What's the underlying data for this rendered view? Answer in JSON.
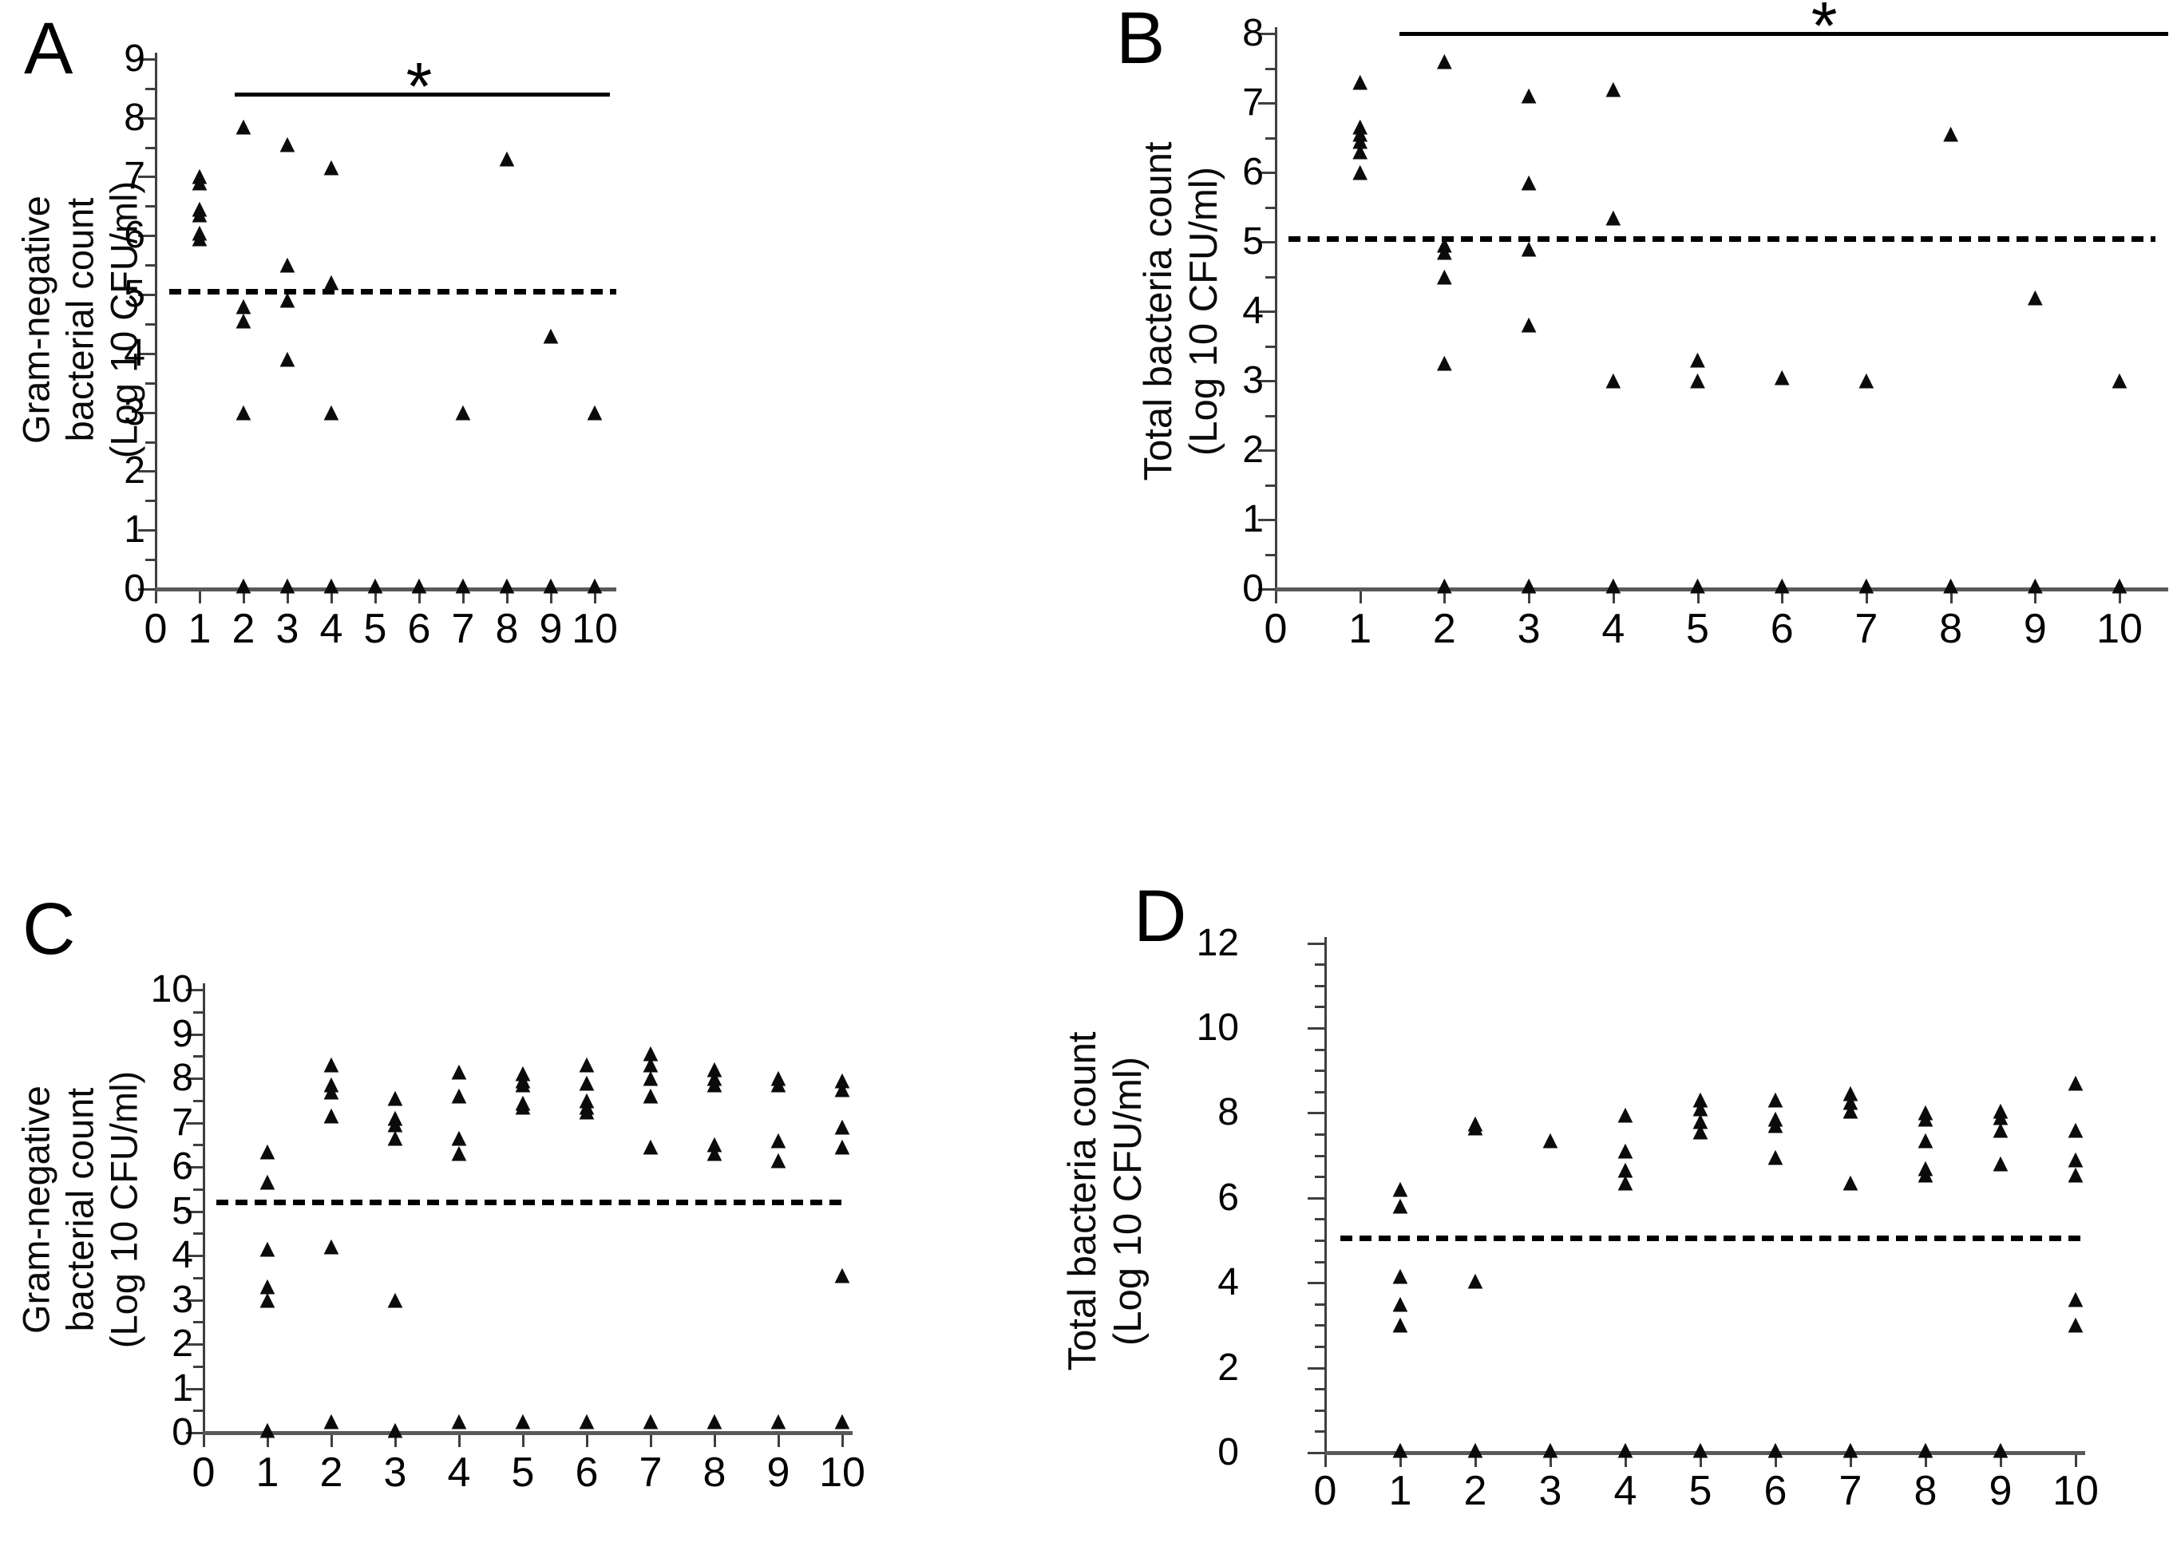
{
  "figure": {
    "background_color": "#ffffff",
    "marker_color": "#0b0b0b",
    "marker_glyph": "triangle-up",
    "axis_color": "#3f3f3f"
  },
  "chart_data": [
    {
      "panel": "A",
      "type": "scatter",
      "title_letter": "A",
      "y_axis_title_lines": [
        "Gram-negative",
        "bacterial count",
        "(Log 10 CFU/ml)"
      ],
      "xlim": [
        0,
        10
      ],
      "ylim": [
        0,
        9
      ],
      "minor_tick_step": 0.5,
      "x_tick_labels": [
        "0",
        "1",
        "2",
        "3",
        "4",
        "5",
        "6",
        "7",
        "8",
        "9",
        "10"
      ],
      "y_tick_labels": [
        "0",
        "1",
        "2",
        "3",
        "4",
        "5",
        "6",
        "7",
        "8",
        "9"
      ],
      "y_label_step": 1,
      "threshold_line_y": 5.05,
      "significance_line": {
        "y": 8.4,
        "x_from": 1.8,
        "x_to": 10.35,
        "asterisk": "*",
        "asterisk_x": 6.0
      },
      "series": [
        {
          "x": 1,
          "values": [
            7.0,
            6.9,
            6.45,
            6.35,
            6.05,
            5.95
          ]
        },
        {
          "x": 2,
          "values": [
            7.85,
            4.8,
            4.55,
            3.0,
            0.05
          ]
        },
        {
          "x": 3,
          "values": [
            7.55,
            5.5,
            4.9,
            3.9,
            0.05
          ]
        },
        {
          "x": 4,
          "values": [
            7.15,
            5.2,
            3.0,
            0.05
          ]
        },
        {
          "x": 5,
          "values": [
            0.05
          ]
        },
        {
          "x": 6,
          "values": [
            0.05
          ]
        },
        {
          "x": 7,
          "values": [
            3.0,
            0.05
          ]
        },
        {
          "x": 8,
          "values": [
            7.3,
            0.05
          ]
        },
        {
          "x": 9,
          "values": [
            4.3,
            0.05
          ]
        },
        {
          "x": 10,
          "values": [
            3.0,
            0.05
          ]
        }
      ]
    },
    {
      "panel": "B",
      "type": "scatter",
      "title_letter": "B",
      "y_axis_title_lines": [
        "Total bacteria count",
        "(Log 10 CFU/ml)"
      ],
      "xlim": [
        0,
        10
      ],
      "ylim": [
        0,
        8
      ],
      "minor_tick_step": 0.5,
      "x_tick_labels": [
        "0",
        "1",
        "2",
        "3",
        "4",
        "5",
        "6",
        "7",
        "8",
        "9",
        "10"
      ],
      "y_tick_labels": [
        "0",
        "1",
        "2",
        "3",
        "4",
        "5",
        "6",
        "7",
        "8"
      ],
      "y_label_step": 1,
      "threshold_line_y": 5.05,
      "significance_line": {
        "y": 8.0,
        "x_from": 1.47,
        "x_to": 10.58,
        "asterisk": "*",
        "asterisk_x": 6.5
      },
      "series": [
        {
          "x": 1,
          "values": [
            7.3,
            6.65,
            6.55,
            6.45,
            6.3,
            6.0
          ]
        },
        {
          "x": 2,
          "values": [
            7.6,
            4.95,
            4.85,
            4.5,
            3.25,
            0.05
          ]
        },
        {
          "x": 3,
          "values": [
            7.1,
            5.85,
            4.9,
            3.8,
            0.05
          ]
        },
        {
          "x": 4,
          "values": [
            7.2,
            5.35,
            3.0,
            0.05
          ]
        },
        {
          "x": 5,
          "values": [
            3.3,
            3.0,
            0.05
          ]
        },
        {
          "x": 6,
          "values": [
            3.05,
            0.05
          ]
        },
        {
          "x": 7,
          "values": [
            3.0,
            0.05
          ]
        },
        {
          "x": 8,
          "values": [
            6.55,
            0.05
          ]
        },
        {
          "x": 9,
          "values": [
            4.2,
            0.05
          ]
        },
        {
          "x": 10,
          "values": [
            3.0,
            0.05
          ]
        }
      ]
    },
    {
      "panel": "C",
      "type": "scatter",
      "title_letter": "C",
      "y_axis_title_lines": [
        "Gram-negative",
        "bacterial count",
        "(Log 10 CFU/ml)"
      ],
      "xlim": [
        0,
        10
      ],
      "ylim": [
        0,
        10
      ],
      "minor_tick_step": 0.5,
      "x_tick_labels": [
        "0",
        "1",
        "2",
        "3",
        "4",
        "5",
        "6",
        "7",
        "8",
        "9",
        "10"
      ],
      "y_tick_labels": [
        "0",
        "1",
        "2",
        "3",
        "4",
        "5",
        "6",
        "7",
        "8",
        "9",
        "10"
      ],
      "y_label_step": 1,
      "threshold_line_y": 5.2,
      "significance_line": null,
      "series": [
        {
          "x": 1,
          "values": [
            6.35,
            5.65,
            4.15,
            3.3,
            3.0,
            0.05
          ]
        },
        {
          "x": 2,
          "values": [
            8.3,
            7.85,
            7.7,
            7.15,
            4.2,
            0.25
          ]
        },
        {
          "x": 3,
          "values": [
            7.55,
            7.1,
            6.95,
            6.65,
            3.0,
            0.05
          ]
        },
        {
          "x": 4,
          "values": [
            8.15,
            7.6,
            6.65,
            6.3,
            0.25
          ]
        },
        {
          "x": 5,
          "values": [
            8.1,
            7.95,
            7.85,
            7.45,
            7.35,
            0.25
          ]
        },
        {
          "x": 6,
          "values": [
            8.3,
            7.9,
            7.5,
            7.35,
            7.25,
            0.25
          ]
        },
        {
          "x": 7,
          "values": [
            8.55,
            8.3,
            8.0,
            7.6,
            6.45,
            0.25
          ]
        },
        {
          "x": 8,
          "values": [
            8.2,
            8.0,
            7.85,
            6.5,
            6.3,
            0.25
          ]
        },
        {
          "x": 9,
          "values": [
            8.0,
            7.85,
            6.6,
            6.15,
            0.25
          ]
        },
        {
          "x": 10,
          "values": [
            7.95,
            7.75,
            6.9,
            6.45,
            3.55,
            0.25
          ]
        }
      ]
    },
    {
      "panel": "D",
      "type": "scatter",
      "title_letter": "D",
      "y_axis_title_lines": [
        "Total bacteria count",
        "(Log 10 CFU/ml)"
      ],
      "xlim": [
        0,
        10
      ],
      "ylim": [
        0,
        12
      ],
      "minor_tick_step": 0.5,
      "x_tick_labels": [
        "0",
        "1",
        "2",
        "3",
        "4",
        "5",
        "6",
        "7",
        "8",
        "9",
        "10"
      ],
      "y_tick_labels": [
        "0",
        "2",
        "4",
        "6",
        "8",
        "10",
        "12"
      ],
      "y_label_step": 2,
      "threshold_line_y": 5.05,
      "significance_line": null,
      "series": [
        {
          "x": 1,
          "values": [
            6.2,
            5.8,
            4.15,
            3.5,
            3.0,
            0.05
          ]
        },
        {
          "x": 2,
          "values": [
            7.75,
            7.65,
            4.05,
            0.05
          ]
        },
        {
          "x": 3,
          "values": [
            7.35,
            0.05
          ]
        },
        {
          "x": 4,
          "values": [
            7.95,
            7.1,
            6.65,
            6.35,
            0.05
          ]
        },
        {
          "x": 5,
          "values": [
            8.3,
            8.1,
            7.8,
            7.55,
            0.05
          ]
        },
        {
          "x": 6,
          "values": [
            8.3,
            7.85,
            7.7,
            6.95,
            0.05
          ]
        },
        {
          "x": 7,
          "values": [
            8.45,
            8.25,
            8.05,
            6.35,
            0.05
          ]
        },
        {
          "x": 8,
          "values": [
            8.0,
            7.85,
            7.35,
            6.7,
            6.55,
            0.05
          ]
        },
        {
          "x": 9,
          "values": [
            8.05,
            7.9,
            7.6,
            6.8,
            0.05
          ]
        },
        {
          "x": 10,
          "values": [
            8.7,
            7.6,
            6.9,
            6.55,
            3.6,
            3.0
          ]
        }
      ]
    }
  ]
}
